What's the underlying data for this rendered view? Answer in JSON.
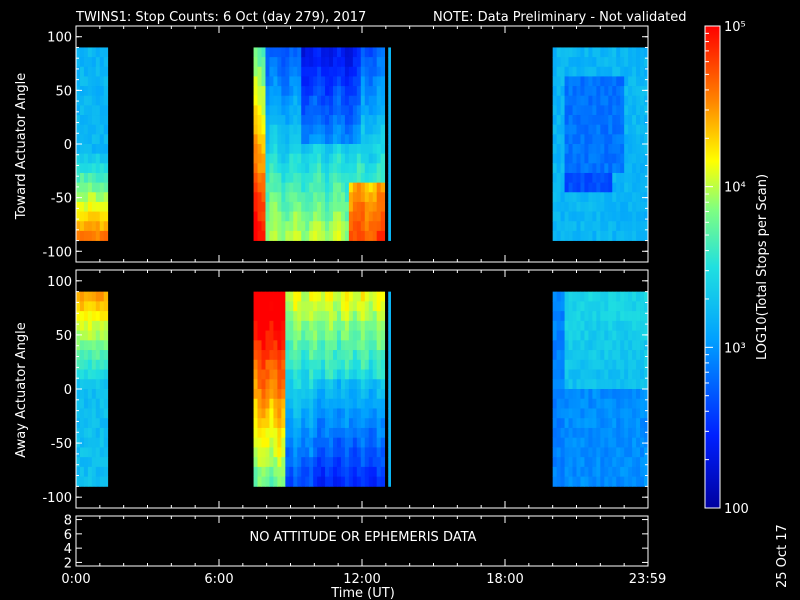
{
  "header": {
    "title": "TWINS1: Stop Counts:  6 Oct (day 279), 2017",
    "note": "NOTE: Data Preliminary - Not validated",
    "note_color": "#ff2020"
  },
  "side_stamp": "25 Oct 17",
  "chart_data": [
    {
      "type": "heatmap",
      "name": "toward",
      "ylabel": "Toward Actuator Angle",
      "ylim": [
        -110,
        110
      ],
      "yticks": [
        "100",
        "50",
        "0",
        "-50",
        "-100"
      ],
      "ytick_values": [
        100,
        50,
        0,
        -50,
        -100
      ],
      "data_ylim": [
        -90,
        90
      ],
      "xlim_hours": [
        0,
        24
      ],
      "data_segments_hours": [
        [
          0,
          1.33
        ],
        [
          7.45,
          12.95
        ],
        [
          13.1,
          13.2
        ],
        [
          20.0,
          24.0
        ]
      ]
    },
    {
      "type": "heatmap",
      "name": "away",
      "ylabel": "Away Actuator Angle",
      "ylim": [
        -110,
        110
      ],
      "yticks": [
        "100",
        "50",
        "0",
        "-50",
        "-100"
      ],
      "ytick_values": [
        100,
        50,
        0,
        -50,
        -100
      ],
      "data_ylim": [
        -90,
        90
      ],
      "xlim_hours": [
        0,
        24
      ],
      "data_segments_hours": [
        [
          0,
          1.33
        ],
        [
          7.45,
          12.95
        ],
        [
          13.1,
          13.2
        ],
        [
          20.0,
          24.0
        ]
      ]
    },
    {
      "type": "line",
      "name": "attitude",
      "message": "NO ATTITUDE OR EPHEMERIS DATA",
      "yticks": [
        "8",
        "6",
        "4",
        "2"
      ],
      "ytick_values": [
        8,
        6,
        4,
        2
      ],
      "ylim": [
        1.5,
        8.5
      ]
    }
  ],
  "xaxis": {
    "label": "Time (UT)",
    "ticks": [
      "0:00",
      "6:00",
      "12:00",
      "18:00",
      "23:59"
    ],
    "tick_hours": [
      0,
      6,
      12,
      18,
      23.98
    ]
  },
  "colorbar": {
    "label": "LOG10(Total Stops per Scan)",
    "ticks": [
      "10⁵",
      "10⁴",
      "10³",
      "100"
    ],
    "tick_values": [
      100000,
      10000,
      1000,
      100
    ],
    "range": [
      100,
      100000
    ]
  }
}
